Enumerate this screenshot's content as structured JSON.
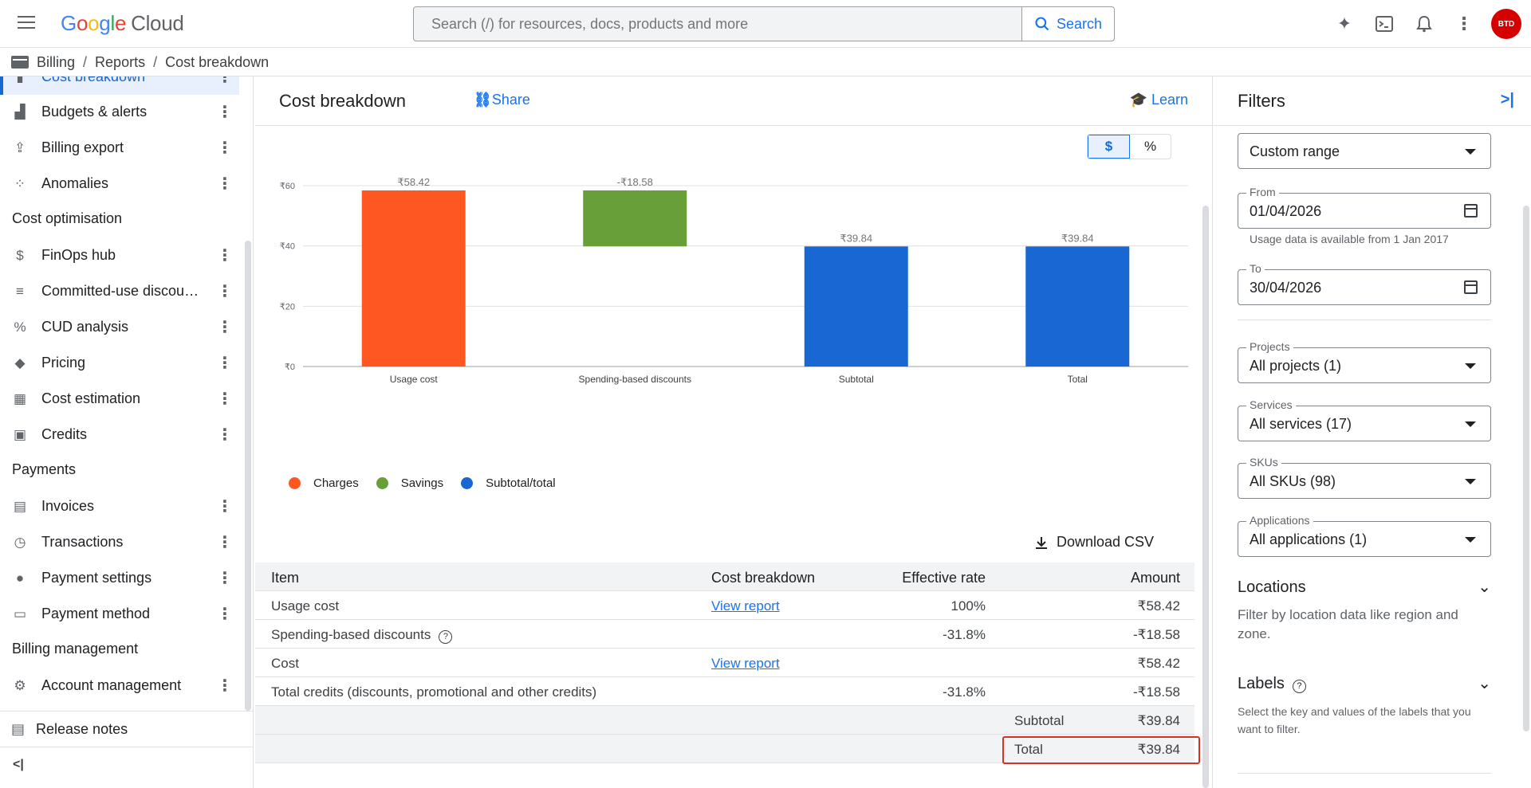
{
  "app": {
    "logo_letters": [
      "G",
      "o",
      "o",
      "g",
      "l",
      "e"
    ],
    "logo_product": "Cloud",
    "search_placeholder": "Search (/) for resources, docs, products and more",
    "search_button": "Search",
    "avatar_text": "BTD"
  },
  "breadcrumb": [
    "Billing",
    "Reports",
    "Cost breakdown"
  ],
  "sidebar": {
    "items": [
      {
        "label": "Cost breakdown",
        "icon": "chart-bar-icon",
        "active": true
      },
      {
        "label": "Budgets & alerts",
        "icon": "budget-icon"
      },
      {
        "label": "Billing export",
        "icon": "export-icon"
      },
      {
        "label": "Anomalies",
        "icon": "anomalies-icon"
      },
      {
        "label": "FinOps hub",
        "icon": "dollar-circle-icon"
      },
      {
        "label": "Committed-use discou…",
        "icon": "list-icon"
      },
      {
        "label": "CUD analysis",
        "icon": "percent-icon"
      },
      {
        "label": "Pricing",
        "icon": "tag-icon"
      },
      {
        "label": "Cost estimation",
        "icon": "calculator-icon"
      },
      {
        "label": "Credits",
        "icon": "gift-icon"
      },
      {
        "label": "Invoices",
        "icon": "invoice-icon"
      },
      {
        "label": "Transactions",
        "icon": "clock-icon"
      },
      {
        "label": "Payment settings",
        "icon": "person-icon"
      },
      {
        "label": "Payment method",
        "icon": "card-icon"
      },
      {
        "label": "Account management",
        "icon": "gear-icon"
      }
    ],
    "sections": [
      "Cost optimisation",
      "Payments",
      "Billing management"
    ],
    "release_notes": "Release notes",
    "collapse_label": "<|"
  },
  "main": {
    "title": "Cost breakdown",
    "share": "Share",
    "learn": "Learn",
    "toggle": {
      "dollar": "$",
      "percent": "%",
      "selected": "$"
    },
    "download_csv": "Download CSV"
  },
  "chart_data": {
    "type": "bar",
    "subtype": "waterfall",
    "categories": [
      "Usage cost",
      "Spending-based discounts",
      "Subtotal",
      "Total"
    ],
    "bars": [
      {
        "category": "Usage cost",
        "start": 0,
        "end": 58.42,
        "label": "₹58.42",
        "series": "Charges"
      },
      {
        "category": "Spending-based discounts",
        "start": 39.84,
        "end": 58.42,
        "label": "-₹18.58",
        "series": "Savings"
      },
      {
        "category": "Subtotal",
        "start": 0,
        "end": 39.84,
        "label": "₹39.84",
        "series": "Subtotal/total"
      },
      {
        "category": "Total",
        "start": 0,
        "end": 39.84,
        "label": "₹39.84",
        "series": "Subtotal/total"
      }
    ],
    "y_ticks": [
      "₹0",
      "₹20",
      "₹40",
      "₹60"
    ],
    "y_tick_values": [
      0,
      20,
      40,
      60
    ],
    "ylim": [
      0,
      60
    ],
    "grid": true,
    "legend_position": "bottom-left",
    "legend": [
      {
        "name": "Charges",
        "color": "#ff5722"
      },
      {
        "name": "Savings",
        "color": "#689f38"
      },
      {
        "name": "Subtotal/total",
        "color": "#1967d2"
      }
    ]
  },
  "table": {
    "headers": [
      "Item",
      "Cost breakdown",
      "Effective rate",
      "Amount"
    ],
    "rows": [
      {
        "item": "Usage cost",
        "breakdown": "View report",
        "rate": "100%",
        "amount": "₹58.42"
      },
      {
        "item": "Spending-based discounts",
        "breakdown": "",
        "rate": "-31.8%",
        "amount": "-₹18.58"
      },
      {
        "item": "Cost",
        "breakdown": "View report",
        "rate": "",
        "amount": "₹58.42"
      },
      {
        "item": "Total credits (discounts, promotional and other credits)",
        "breakdown": "",
        "rate": "-31.8%",
        "amount": "-₹18.58"
      }
    ],
    "subtotal_label": "Subtotal",
    "subtotal_amount": "₹39.84",
    "total_label": "Total",
    "total_amount": "₹39.84"
  },
  "filters": {
    "title": "Filters",
    "range": "Custom range",
    "from_label": "From",
    "from_value": "01/04/2026",
    "from_hint": "Usage data is available from 1 Jan 2017",
    "to_label": "To",
    "to_value": "30/04/2026",
    "projects_label": "Projects",
    "projects_value": "All projects (1)",
    "services_label": "Services",
    "services_value": "All services (17)",
    "skus_label": "SKUs",
    "skus_value": "All SKUs (98)",
    "applications_label": "Applications",
    "applications_value": "All applications (1)",
    "locations_title": "Locations",
    "locations_desc": "Filter by location data like region and zone.",
    "labels_title": "Labels",
    "labels_desc": "Select the key and values of the labels that you want to filter."
  }
}
